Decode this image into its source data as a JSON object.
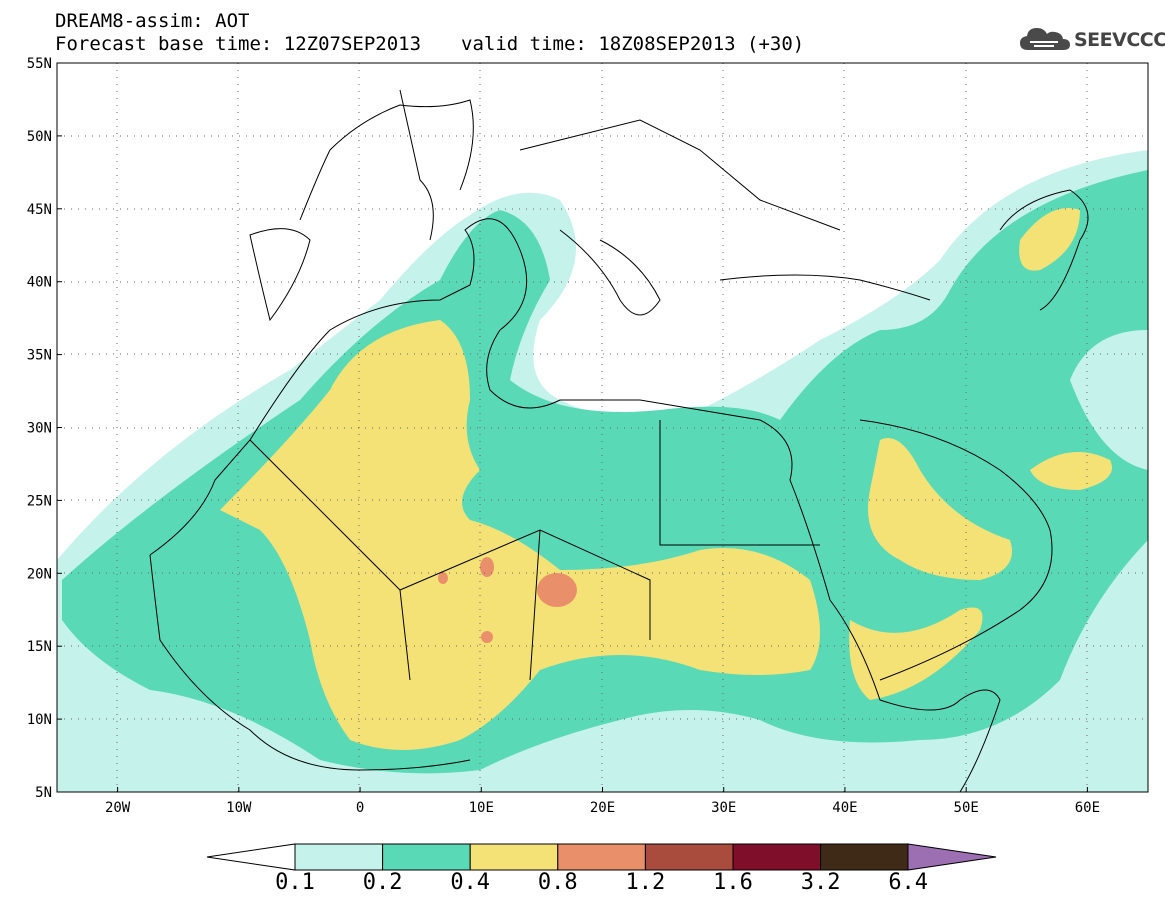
{
  "header": {
    "line1": "DREAM8-assim: AOT",
    "base_time": "Forecast base time: 12Z07SEP2013",
    "valid_time": "valid time: 18Z08SEP2013 (+30)"
  },
  "logo": {
    "text": "SEEVCCC",
    "icon": "cloud-icon"
  },
  "map": {
    "lat_labels": [
      "55N",
      "50N",
      "45N",
      "40N",
      "35N",
      "30N",
      "25N",
      "20N",
      "15N",
      "10N",
      "5N"
    ],
    "lon_labels": [
      "20W",
      "10W",
      "0",
      "10E",
      "20E",
      "30E",
      "40E",
      "50E",
      "60E"
    ],
    "extent": {
      "lon_min": -25,
      "lon_max": 65,
      "lat_min": 5,
      "lat_max": 55
    }
  },
  "colorbar": {
    "labels": [
      "0.1",
      "0.2",
      "0.4",
      "0.8",
      "1.2",
      "1.6",
      "3.2",
      "6.4"
    ],
    "colors": [
      "#c6f2ec",
      "#5ad9b6",
      "#f4e277",
      "#e9906a",
      "#a94c3e",
      "#7e0e2a",
      "#3f2a17"
    ],
    "under_color": "#ffffff",
    "over_color": "#9b6fb2"
  }
}
